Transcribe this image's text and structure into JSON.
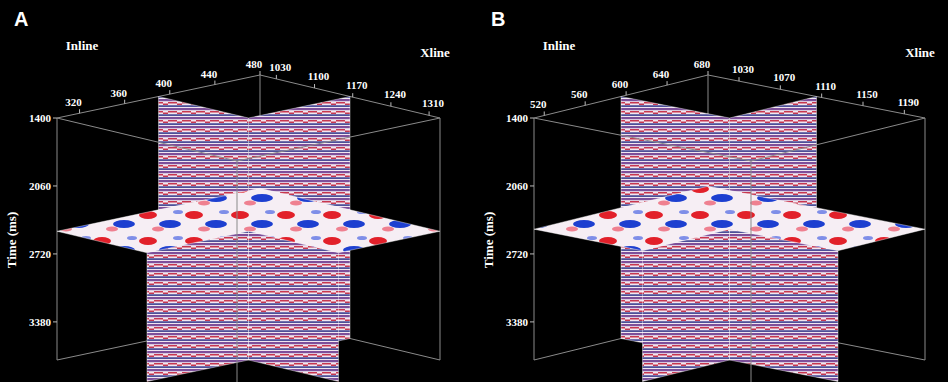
{
  "chart_data": [
    {
      "type": "seismic_cube",
      "title": "A",
      "x_label": "Inline",
      "y_label": "Xline",
      "z_label": "Time (ms)",
      "xlim": [
        300,
        480
      ],
      "xticks": [
        320,
        360,
        400,
        440,
        480
      ],
      "ylim": [
        1000,
        1330
      ],
      "yticks": [
        1030,
        1100,
        1170,
        1240,
        1310
      ],
      "zlim": [
        1400,
        3750
      ],
      "zticks": [
        1400,
        2060,
        2720,
        3380
      ],
      "slices": {
        "inline": 390,
        "xline": 1165,
        "time": 2500
      }
    },
    {
      "type": "seismic_cube",
      "title": "B",
      "x_label": "Inline",
      "y_label": "Xline",
      "z_label": "Time (ms)",
      "xlim": [
        510,
        680
      ],
      "xticks": [
        520,
        560,
        600,
        640,
        680
      ],
      "ylim": [
        1000,
        1210
      ],
      "yticks": [
        1030,
        1070,
        1110,
        1150,
        1190
      ],
      "zlim": [
        1400,
        3750
      ],
      "zticks": [
        1400,
        2060,
        2720,
        3380
      ],
      "slices": {
        "inline": 595,
        "xline": 1105,
        "time": 2480
      }
    }
  ]
}
